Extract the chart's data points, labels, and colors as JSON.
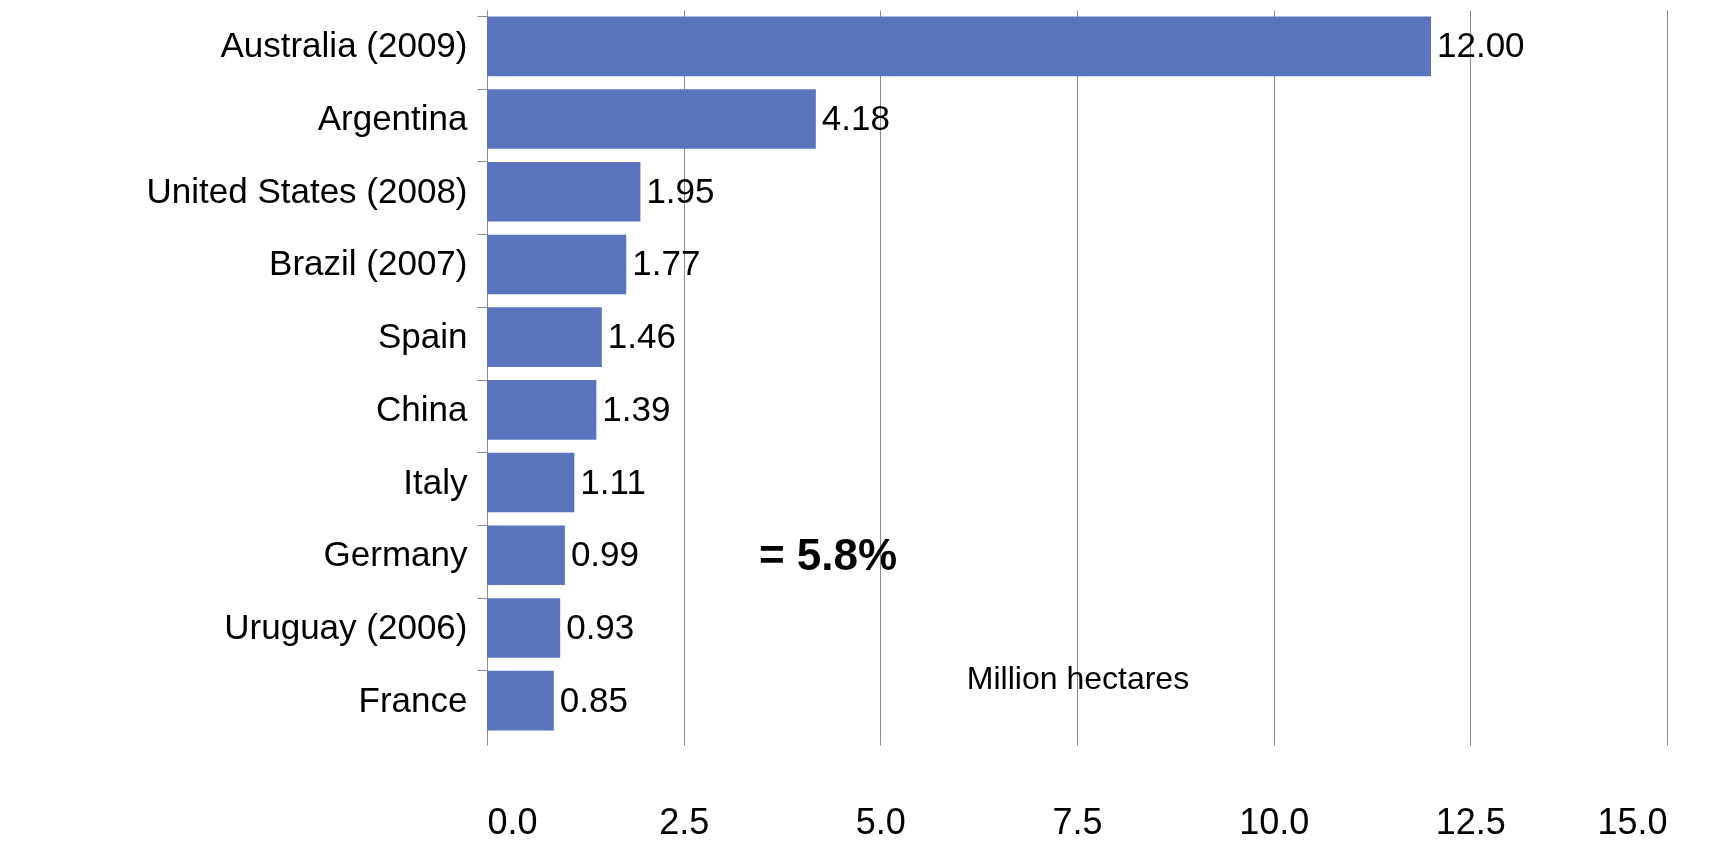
{
  "chart_data": {
    "type": "bar",
    "orientation": "horizontal",
    "categories": [
      "Australia (2009)",
      "Argentina",
      "United States (2008)",
      "Brazil (2007)",
      "Spain",
      "China",
      "Italy",
      "Germany",
      "Uruguay (2006)",
      "France"
    ],
    "values": [
      12.0,
      4.18,
      1.95,
      1.77,
      1.46,
      1.39,
      1.11,
      0.99,
      0.93,
      0.85
    ],
    "value_labels": [
      "12.00",
      "4.18",
      "1.95",
      "1.77",
      "1.46",
      "1.39",
      "1.11",
      "0.99",
      "0.93",
      "0.85"
    ],
    "color": "#5a74be",
    "xlim": [
      0,
      15
    ],
    "xticks": [
      {
        "value": 0,
        "label": "0.0"
      },
      {
        "value": 2.5,
        "label": "2.5"
      },
      {
        "value": 5,
        "label": "5.0"
      },
      {
        "value": 7.5,
        "label": "7.5"
      },
      {
        "value": 10,
        "label": "10.0"
      },
      {
        "value": 12.5,
        "label": "12.5"
      },
      {
        "value": 15,
        "label": "15.0"
      }
    ],
    "grid": "x",
    "annotations": [
      "= 5.8%",
      "Million hectares"
    ]
  }
}
